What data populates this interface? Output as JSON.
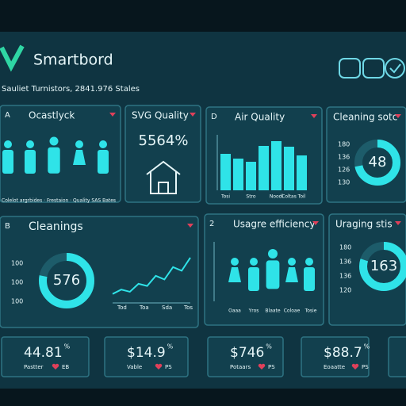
{
  "header": {
    "title": "Smartbord",
    "subtitle": "Sauliet  Turnistors,  2841.976  Stales"
  },
  "panels": [
    {
      "badge": "A",
      "title": "Ocastlyck",
      "caption": "Colelot argrbides · Frestaion · Quality SAS Bates"
    },
    {
      "title": "SVG Quality",
      "value": "5564%"
    },
    {
      "badge": "D",
      "title": "Air Quality",
      "chart": {
        "type": "bar",
        "categories": [
          "Tosi",
          null,
          "Stro",
          null,
          "Noodi",
          "Coltas",
          "Toil"
        ],
        "values": [
          46,
          40,
          36,
          56,
          62,
          55,
          44
        ],
        "ylim": [
          0,
          70
        ]
      }
    },
    {
      "title": "Cleaning sotc",
      "labels": [
        "180",
        "136",
        "126",
        "130"
      ],
      "donut": {
        "value": "48",
        "fill": 72
      }
    },
    {
      "badge": "B",
      "title": "Cleanings",
      "labels": [
        "100",
        "100",
        "100"
      ],
      "donut": {
        "value": "576",
        "fill": 78
      },
      "chart": {
        "type": "line",
        "values": [
          8,
          14,
          11,
          22,
          19,
          33,
          28,
          45,
          40,
          58
        ],
        "ylim": [
          0,
          70
        ],
        "categories": [
          "Tod",
          "Toa",
          "Sda",
          "Tos"
        ]
      }
    },
    {
      "badge": "2",
      "title": "Usagre efficiency",
      "categories": [
        "Oaaa",
        "Yros",
        "Blaate",
        "Coloae",
        "Tosie"
      ]
    },
    {
      "title": "Uraging stis",
      "labels": [
        "180",
        "136",
        "136",
        "120"
      ],
      "donut": {
        "value": "163",
        "fill": 80
      }
    }
  ],
  "cards": [
    {
      "value": "44.81",
      "unit": "%",
      "caption": "Pastter",
      "tag": "EB"
    },
    {
      "value": "$14.9",
      "unit": "%",
      "caption": "Vable",
      "tag": "PS"
    },
    {
      "value": "$746",
      "unit": "%",
      "caption": "Potaars",
      "tag": "PS"
    },
    {
      "value": "$88.7",
      "unit": "%",
      "caption": "Eoaatte",
      "tag": "PS"
    }
  ]
}
